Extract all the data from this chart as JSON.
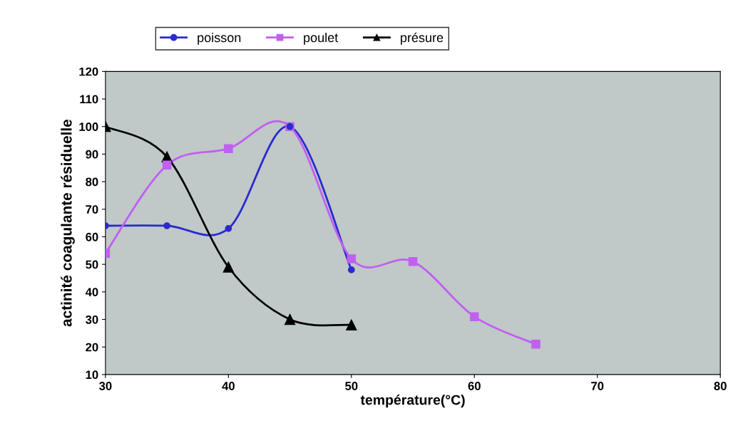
{
  "chart_data": {
    "type": "line",
    "xlabel": "température(°C)",
    "ylabel": "actinité coagulante résiduelle",
    "xlim": [
      30,
      80
    ],
    "xticks": [
      30,
      40,
      50,
      60,
      70,
      80
    ],
    "ylim": [
      10,
      120
    ],
    "yticks": [
      10,
      20,
      30,
      40,
      50,
      60,
      70,
      80,
      90,
      100,
      110,
      120
    ],
    "grid": false,
    "legend": "top",
    "line_style": "solid",
    "series": [
      {
        "name": "poisson",
        "color": "#2a2ad0",
        "marker": "circle",
        "x": [
          30,
          35,
          40,
          45,
          50
        ],
        "values": [
          64,
          64,
          63,
          100,
          48
        ]
      },
      {
        "name": "poulet",
        "color": "#c060f0",
        "marker": "square",
        "x": [
          30,
          35,
          40,
          45,
          50,
          55,
          60,
          65
        ],
        "values": [
          54,
          86,
          92,
          100,
          52,
          51,
          31,
          21
        ]
      },
      {
        "name": "présure",
        "color": "#000000",
        "marker": "triangle",
        "x": [
          30,
          35,
          40,
          45,
          50
        ],
        "values": [
          100,
          89,
          49,
          30,
          28
        ]
      }
    ]
  }
}
